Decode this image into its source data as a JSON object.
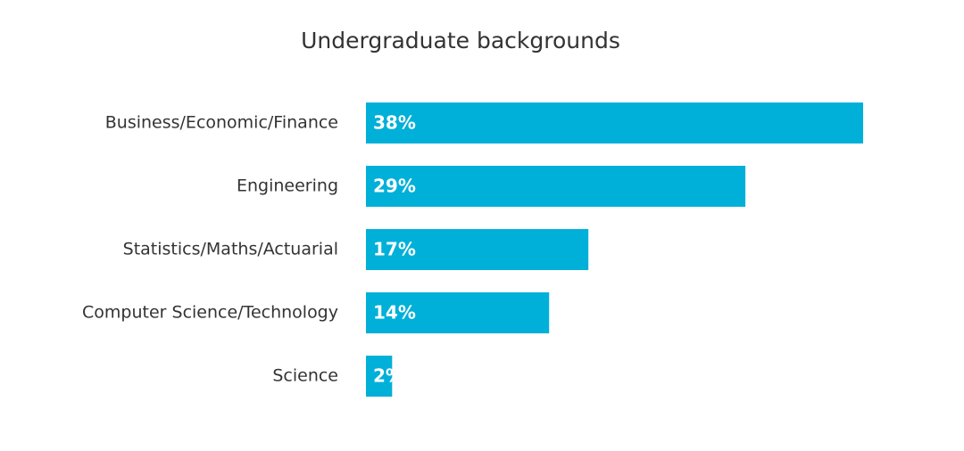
{
  "chart_data": {
    "type": "bar",
    "orientation": "horizontal",
    "title": "Undergraduate backgrounds",
    "categories": [
      "Business/Economic/Finance",
      "Engineering",
      "Statistics/Maths/Actuarial",
      "Computer Science/Technology",
      "Science"
    ],
    "values": [
      38,
      29,
      17,
      14,
      2
    ],
    "value_labels": [
      "38%",
      "29%",
      "17%",
      "14%",
      "2%"
    ],
    "color": "#00b0d8"
  }
}
